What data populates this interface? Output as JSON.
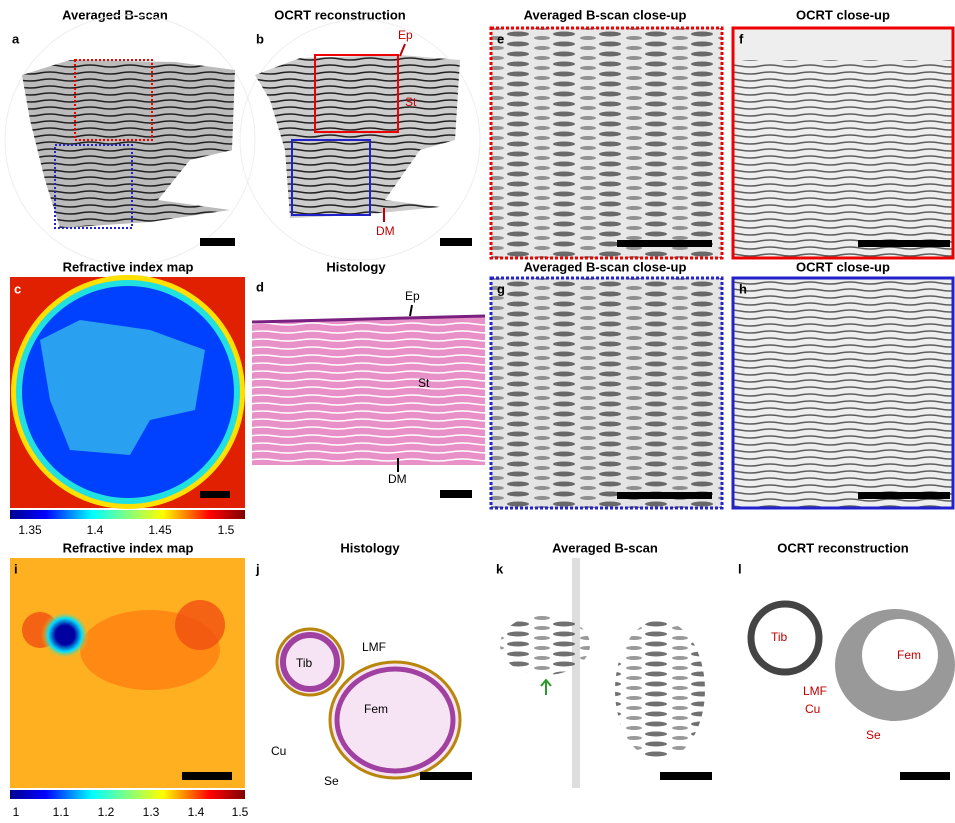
{
  "panels": [
    {
      "letter": "a",
      "title": "Averaged B-scan"
    },
    {
      "letter": "b",
      "title": "OCRT reconstruction",
      "labels": [
        "Ep",
        "St",
        "DM"
      ]
    },
    {
      "letter": "e",
      "title": "Averaged B-scan close-up"
    },
    {
      "letter": "f",
      "title": "OCRT close-up"
    },
    {
      "letter": "c",
      "title": "Refractive index map"
    },
    {
      "letter": "d",
      "title": "Histology",
      "labels": [
        "Ep",
        "St",
        "DM"
      ]
    },
    {
      "letter": "g",
      "title": "Averaged B-scan close-up"
    },
    {
      "letter": "h",
      "title": "OCRT close-up"
    },
    {
      "letter": "i",
      "title": "Refractive index map"
    },
    {
      "letter": "j",
      "title": "Histology",
      "labels": [
        "Tib",
        "LMF",
        "Fem",
        "Cu",
        "Se"
      ]
    },
    {
      "letter": "k",
      "title": "Averaged B-scan"
    },
    {
      "letter": "l",
      "title": "OCRT reconstruction",
      "labels": [
        "Tib",
        "Fem",
        "LMF",
        "Cu",
        "Se"
      ]
    }
  ],
  "colorbars": [
    {
      "ticks": [
        1.35,
        1.4,
        1.45,
        1.5
      ]
    },
    {
      "ticks": [
        1,
        1.1,
        1.2,
        1.3,
        1.4,
        1.5
      ]
    }
  ]
}
